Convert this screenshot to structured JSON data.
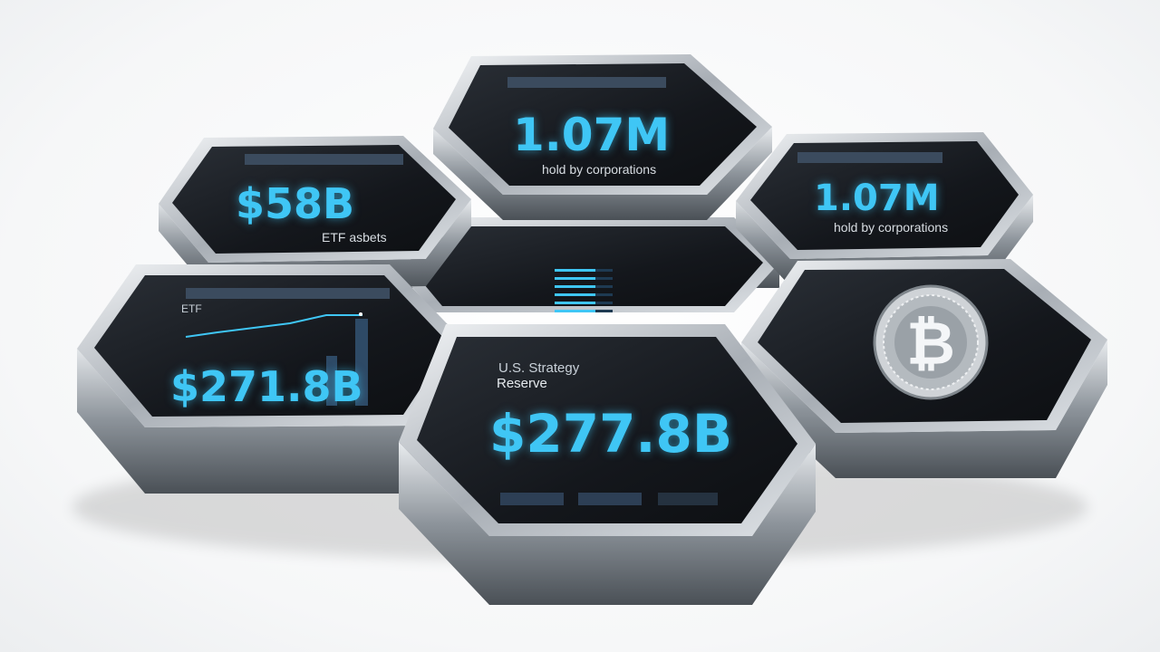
{
  "tiles": {
    "top_center": {
      "value": "1.07M",
      "caption": "hold by corporations"
    },
    "left_top": {
      "value": "$58B",
      "caption": "ETF asbets"
    },
    "right_top": {
      "value": "1.07M",
      "caption": "hold by corporations"
    },
    "left_chart": {
      "value": "$271.8B",
      "caption": "ETF"
    },
    "bottom_center": {
      "title": "U.S. Strategy",
      "caption": "Reserve",
      "value": "$277.8B"
    },
    "right_coin": {
      "icon": "bitcoin-coin-icon"
    },
    "center_table": {
      "rows": 6
    }
  },
  "colors": {
    "accent": "#3fc6f5",
    "panel": "#15181d",
    "metal": "#b9bec4"
  }
}
